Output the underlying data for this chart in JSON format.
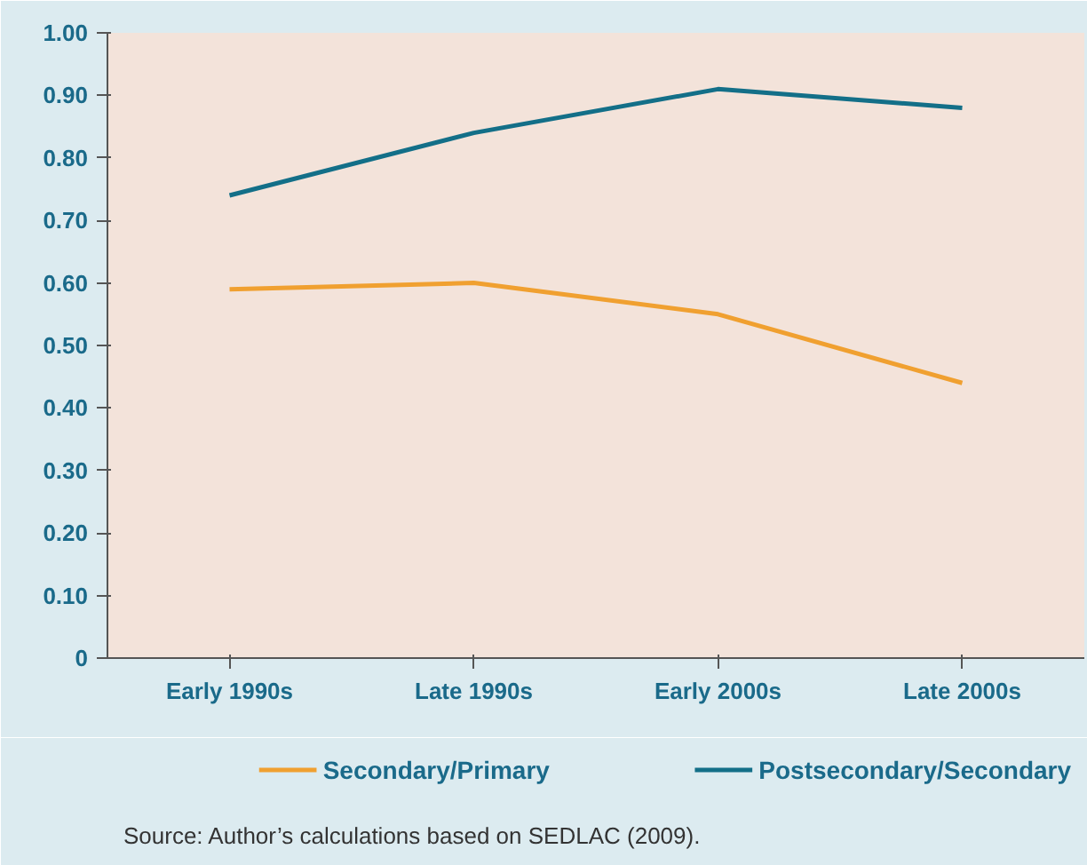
{
  "chart_data": {
    "type": "line",
    "categories": [
      "Early 1990s",
      "Late 1990s",
      "Early 2000s",
      "Late 2000s"
    ],
    "series": [
      {
        "name": "Secondary/Primary",
        "color": "#f0a030",
        "values": [
          0.59,
          0.6,
          0.55,
          0.44
        ]
      },
      {
        "name": "Postsecondary/Secondary",
        "color": "#136f88",
        "values": [
          0.74,
          0.84,
          0.91,
          0.88
        ]
      }
    ],
    "ylim": [
      0,
      1
    ],
    "yticks": [
      0,
      {
        "value": 0.1,
        "label": "0.10"
      },
      {
        "value": 0.2,
        "label": "0.20"
      },
      {
        "value": 0.3,
        "label": "0.30"
      },
      {
        "value": 0.4,
        "label": "0.40"
      },
      {
        "value": 0.5,
        "label": "0.50"
      },
      {
        "value": 0.6,
        "label": "0.60"
      },
      {
        "value": 0.7,
        "label": "0.70"
      },
      {
        "value": 0.8,
        "label": "0.80"
      },
      {
        "value": 0.9,
        "label": "0.90"
      },
      {
        "value": 1.0,
        "label": "1.00"
      }
    ],
    "grid": false,
    "legend": "bottom",
    "marker": "none",
    "line_style": "solid",
    "annotations": [
      "Source: Author’s calculations based on SEDLAC (2009)."
    ]
  }
}
